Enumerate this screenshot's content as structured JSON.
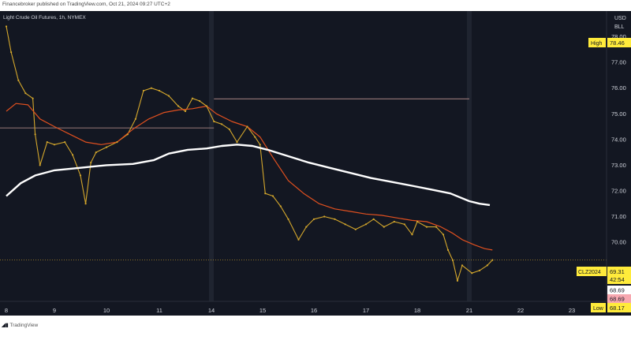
{
  "header": {
    "publisher_text": "Financebroker published on TradingView.com, Oct 21, 2024 09:27 UTC+2"
  },
  "symbol": {
    "title": "Light Crude Oil Futures, 1h, NYMEX",
    "ticker": "CLZ2024"
  },
  "axis": {
    "currency": "USD",
    "unit": "BLL"
  },
  "markers": {
    "high_label": "High",
    "high_value": "78.46",
    "low_label": "Low",
    "low_value": "68.17",
    "last_price": "69.31",
    "countdown": "42:54",
    "bid_price": "68.69",
    "ask_price": "68.69"
  },
  "footer": {
    "brand": "TradingView"
  },
  "colors": {
    "background": "#131722",
    "candle": "#d4a72c",
    "ema_fast": "#e0501f",
    "ema_slow": "#ffffff",
    "level_line": "#8a6f6f",
    "session_band": "#1f2430"
  },
  "chart_data": {
    "type": "line",
    "title": "Light Crude Oil Futures, 1h, NYMEX",
    "xlabel": "",
    "ylabel": "",
    "ylim": [
      67.7,
      79.0
    ],
    "y_ticks": [
      70.0,
      71.0,
      72.0,
      73.0,
      74.0,
      75.0,
      76.0,
      77.0,
      78.0
    ],
    "x_ticks": [
      {
        "label": "8",
        "day": 8
      },
      {
        "label": "9",
        "day": 9
      },
      {
        "label": "10",
        "day": 10
      },
      {
        "label": "11",
        "day": 11
      },
      {
        "label": "14",
        "day": 14
      },
      {
        "label": "15",
        "day": 15
      },
      {
        "label": "16",
        "day": 16
      },
      {
        "label": "17",
        "day": 17
      },
      {
        "label": "18",
        "day": 18
      },
      {
        "label": "21",
        "day": 21
      },
      {
        "label": "22",
        "day": 22
      },
      {
        "label": "23",
        "day": 23
      }
    ],
    "session_breaks": [
      14,
      21
    ],
    "horizontal_levels": [
      75.58,
      74.45
    ],
    "series": [
      {
        "name": "",
        "role": "price",
        "points": [
          [
            8.0,
            78.4
          ],
          [
            8.1,
            77.4
          ],
          [
            8.25,
            76.3
          ],
          [
            8.4,
            75.8
          ],
          [
            8.55,
            75.6
          ],
          [
            8.6,
            74.2
          ],
          [
            8.7,
            73.0
          ],
          [
            8.85,
            73.9
          ],
          [
            9.0,
            73.8
          ],
          [
            9.2,
            73.9
          ],
          [
            9.35,
            73.4
          ],
          [
            9.5,
            72.6
          ],
          [
            9.6,
            71.5
          ],
          [
            9.7,
            73.1
          ],
          [
            9.8,
            73.5
          ],
          [
            10.0,
            73.7
          ],
          [
            10.2,
            73.9
          ],
          [
            10.4,
            74.2
          ],
          [
            10.55,
            74.8
          ],
          [
            10.7,
            75.9
          ],
          [
            10.85,
            76.0
          ],
          [
            11.0,
            75.9
          ],
          [
            11.2,
            75.7
          ],
          [
            11.4,
            75.3
          ],
          [
            11.55,
            75.1
          ],
          [
            11.7,
            75.6
          ],
          [
            11.85,
            75.5
          ],
          [
            12.0,
            75.3
          ],
          [
            14.05,
            74.7
          ],
          [
            14.2,
            74.6
          ],
          [
            14.35,
            74.4
          ],
          [
            14.5,
            73.9
          ],
          [
            14.7,
            74.5
          ],
          [
            14.85,
            74.1
          ],
          [
            14.95,
            73.8
          ],
          [
            15.05,
            71.9
          ],
          [
            15.2,
            71.8
          ],
          [
            15.35,
            71.4
          ],
          [
            15.5,
            70.9
          ],
          [
            15.7,
            70.1
          ],
          [
            15.85,
            70.6
          ],
          [
            16.0,
            70.9
          ],
          [
            16.2,
            71.0
          ],
          [
            16.4,
            70.9
          ],
          [
            16.6,
            70.7
          ],
          [
            16.8,
            70.5
          ],
          [
            17.0,
            70.7
          ],
          [
            17.15,
            70.9
          ],
          [
            17.35,
            70.6
          ],
          [
            17.55,
            70.8
          ],
          [
            17.75,
            70.7
          ],
          [
            17.9,
            70.3
          ],
          [
            18.0,
            70.8
          ],
          [
            18.2,
            70.6
          ],
          [
            18.4,
            70.6
          ],
          [
            18.55,
            70.3
          ],
          [
            18.65,
            69.7
          ],
          [
            18.75,
            69.3
          ],
          [
            18.85,
            68.5
          ],
          [
            18.95,
            69.1
          ],
          [
            21.05,
            68.8
          ],
          [
            21.2,
            68.9
          ],
          [
            21.35,
            69.1
          ],
          [
            21.45,
            69.31
          ]
        ]
      },
      {
        "name": "",
        "role": "ema_fast",
        "points": [
          [
            8.0,
            75.1
          ],
          [
            8.2,
            75.4
          ],
          [
            8.45,
            75.35
          ],
          [
            8.7,
            74.8
          ],
          [
            9.0,
            74.5
          ],
          [
            9.3,
            74.2
          ],
          [
            9.6,
            73.9
          ],
          [
            9.9,
            73.8
          ],
          [
            10.2,
            73.9
          ],
          [
            10.5,
            74.4
          ],
          [
            10.8,
            74.8
          ],
          [
            11.1,
            75.05
          ],
          [
            11.4,
            75.15
          ],
          [
            11.7,
            75.2
          ],
          [
            12.0,
            75.3
          ],
          [
            14.1,
            75.0
          ],
          [
            14.4,
            74.7
          ],
          [
            14.7,
            74.5
          ],
          [
            14.95,
            74.1
          ],
          [
            15.2,
            73.3
          ],
          [
            15.5,
            72.4
          ],
          [
            15.8,
            71.9
          ],
          [
            16.1,
            71.5
          ],
          [
            16.4,
            71.3
          ],
          [
            16.7,
            71.2
          ],
          [
            17.0,
            71.1
          ],
          [
            17.3,
            71.05
          ],
          [
            17.6,
            70.95
          ],
          [
            17.9,
            70.85
          ],
          [
            18.2,
            70.8
          ],
          [
            18.5,
            70.6
          ],
          [
            18.75,
            70.35
          ],
          [
            18.95,
            70.1
          ],
          [
            21.1,
            69.9
          ],
          [
            21.3,
            69.75
          ],
          [
            21.45,
            69.7
          ]
        ]
      },
      {
        "name": "",
        "role": "ema_slow",
        "points": [
          [
            8.0,
            71.8
          ],
          [
            8.3,
            72.3
          ],
          [
            8.6,
            72.6
          ],
          [
            9.0,
            72.8
          ],
          [
            9.5,
            72.9
          ],
          [
            10.0,
            73.0
          ],
          [
            10.5,
            73.05
          ],
          [
            10.9,
            73.2
          ],
          [
            11.2,
            73.45
          ],
          [
            11.6,
            73.6
          ],
          [
            12.0,
            73.65
          ],
          [
            14.2,
            73.75
          ],
          [
            14.5,
            73.8
          ],
          [
            14.8,
            73.75
          ],
          [
            15.1,
            73.6
          ],
          [
            15.5,
            73.35
          ],
          [
            15.9,
            73.1
          ],
          [
            16.3,
            72.9
          ],
          [
            16.7,
            72.7
          ],
          [
            17.1,
            72.5
          ],
          [
            17.5,
            72.35
          ],
          [
            17.9,
            72.2
          ],
          [
            18.3,
            72.05
          ],
          [
            18.7,
            71.9
          ],
          [
            21.0,
            71.6
          ],
          [
            21.2,
            71.5
          ],
          [
            21.4,
            71.45
          ]
        ]
      }
    ]
  }
}
